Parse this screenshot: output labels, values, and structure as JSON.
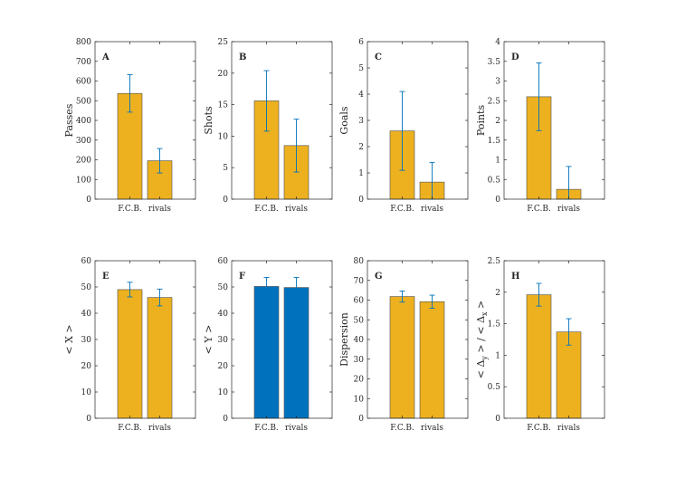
{
  "colors": {
    "orange": "#EDB120",
    "blue": "#0072BD",
    "errorbar": "#0072BD",
    "axis": "#262626",
    "bar_edge": "#4d4d4d"
  },
  "chart_data": [
    {
      "type": "bar",
      "panel": "A",
      "categories": [
        "F.C.B.",
        "rivals"
      ],
      "values": [
        537,
        195
      ],
      "errors": [
        95,
        62
      ],
      "ylabel": "Passes",
      "ylim": [
        0,
        800
      ],
      "yticks": [
        "0",
        "100",
        "200",
        "300",
        "400",
        "500",
        "600",
        "700",
        "800"
      ],
      "bar_color": "orange"
    },
    {
      "type": "bar",
      "panel": "B",
      "categories": [
        "F.C.B.",
        "rivals"
      ],
      "values": [
        15.6,
        8.5
      ],
      "errors": [
        4.8,
        4.2
      ],
      "ylabel": "Shots",
      "ylim": [
        0,
        25
      ],
      "yticks": [
        "0",
        "5",
        "10",
        "15",
        "20",
        "25"
      ],
      "bar_color": "orange"
    },
    {
      "type": "bar",
      "panel": "C",
      "categories": [
        "F.C.B.",
        "rivals"
      ],
      "values": [
        2.6,
        0.65
      ],
      "errors": [
        1.5,
        0.75
      ],
      "ylabel": "Goals",
      "ylim": [
        0,
        6
      ],
      "yticks": [
        "0",
        "1",
        "2",
        "3",
        "4",
        "5",
        "6"
      ],
      "bar_color": "orange"
    },
    {
      "type": "bar",
      "panel": "D",
      "categories": [
        "F.C.B.",
        "rivals"
      ],
      "values": [
        2.6,
        0.25
      ],
      "errors": [
        0.86,
        0.58
      ],
      "ylabel": "Points",
      "ylim": [
        0,
        4
      ],
      "yticks": [
        "0",
        "0.5",
        "1",
        "1.5",
        "2",
        "2.5",
        "3",
        "3.5",
        "4"
      ],
      "bar_color": "orange"
    },
    {
      "type": "bar",
      "panel": "E",
      "categories": [
        "F.C.B.",
        "rivals"
      ],
      "values": [
        49,
        46
      ],
      "errors": [
        2.8,
        3.2
      ],
      "ylabel": "< X >",
      "ylim": [
        0,
        60
      ],
      "yticks": [
        "0",
        "10",
        "20",
        "30",
        "40",
        "50",
        "60"
      ],
      "bar_color": "orange"
    },
    {
      "type": "bar",
      "panel": "F",
      "categories": [
        "F.C.B.",
        "rivals"
      ],
      "values": [
        50.2,
        49.8
      ],
      "errors": [
        3.4,
        3.8
      ],
      "ylabel": "< Y >",
      "ylim": [
        0,
        60
      ],
      "yticks": [
        "0",
        "10",
        "20",
        "30",
        "40",
        "50",
        "60"
      ],
      "bar_color": "blue"
    },
    {
      "type": "bar",
      "panel": "G",
      "categories": [
        "F.C.B.",
        "rivals"
      ],
      "values": [
        61.8,
        59.2
      ],
      "errors": [
        2.8,
        3.3
      ],
      "ylabel": "Dispersion",
      "ylim": [
        0,
        80
      ],
      "yticks": [
        "0",
        "10",
        "20",
        "30",
        "40",
        "50",
        "60",
        "70",
        "80"
      ],
      "bar_color": "orange"
    },
    {
      "type": "bar",
      "panel": "H",
      "categories": [
        "F.C.B.",
        "rivals"
      ],
      "values": [
        1.96,
        1.37
      ],
      "errors": [
        0.18,
        0.21
      ],
      "ylabel": "< Δy > / < Δx >",
      "ylabel_parts": {
        "open": "<",
        "d": "Δ",
        "y": "y",
        "mid": "> / <",
        "x": "x",
        "close": ">"
      },
      "ylim": [
        0,
        2.5
      ],
      "yticks": [
        "0",
        "0.5",
        "1",
        "1.5",
        "2",
        "2.5"
      ],
      "bar_color": "orange"
    }
  ]
}
